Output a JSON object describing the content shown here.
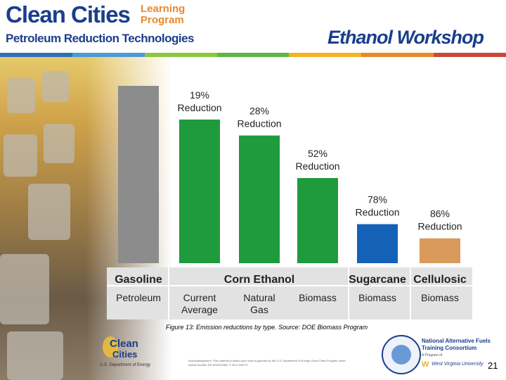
{
  "header": {
    "logo_title": "Clean Cities",
    "logo_program_line1": "Learning",
    "logo_program_line2": "Program",
    "subtitle": "Petroleum Reduction Technologies",
    "workshop_title": "Ethanol Workshop",
    "stripe_colors": [
      "#2e6fb7",
      "#4a9ad6",
      "#8dc63f",
      "#5bb748",
      "#f4b223",
      "#e8892b",
      "#c94a3a"
    ]
  },
  "chart_data": {
    "type": "bar",
    "title": "",
    "xlabel": "",
    "ylabel": "",
    "ylim": [
      0,
      100
    ],
    "categories": [
      "Gasoline Petroleum",
      "Corn Ethanol Current Average",
      "Corn Ethanol Natural Gas",
      "Corn Ethanol Biomass",
      "Sugarcane Biomass",
      "Cellulosic Biomass"
    ],
    "values": [
      100,
      81,
      72,
      48,
      22,
      14
    ],
    "bar_colors": [
      "#8c8c8c",
      "#1f9a3c",
      "#1f9a3c",
      "#1f9a3c",
      "#1461b8",
      "#d99a5b"
    ],
    "bar_labels": [
      {
        "pct": "",
        "word": ""
      },
      {
        "pct": "19%",
        "word": "Reduction"
      },
      {
        "pct": "28%",
        "word": "Reduction"
      },
      {
        "pct": "52%",
        "word": "Reduction"
      },
      {
        "pct": "78%",
        "word": "Reduction"
      },
      {
        "pct": "86%",
        "word": "Reduction"
      }
    ],
    "group_labels": [
      "Gasoline",
      "Corn Ethanol",
      "Sugarcane",
      "Cellulosic"
    ],
    "sub_labels": [
      {
        "line1": "Petroleum",
        "line2": ""
      },
      {
        "line1": "Current",
        "line2": "Average"
      },
      {
        "line1": "Natural",
        "line2": "Gas"
      },
      {
        "line1": "Biomass",
        "line2": ""
      },
      {
        "line1": "Biomass",
        "line2": ""
      },
      {
        "line1": "Biomass",
        "line2": ""
      }
    ]
  },
  "caption": "Figure 13: Emission reductions by type. Source: DOE Biomass Program",
  "footer": {
    "cc_logo_line1": "Clean",
    "cc_logo_line2": "Cities",
    "doe_label": "U.S. Department of Energy",
    "acknowledgement": "Acknowledgement: This material is based upon work supported by the U.S. Department of Energy Clean Cities Program under Award Number DE-EE0002465. © 2012 NAFTC",
    "naftc_line1": "National Alternative Fuels",
    "naftc_line2": "Training Consortium",
    "naftc_sub": "A Program of",
    "wvu": "West Virginia University",
    "page_number": "21"
  }
}
